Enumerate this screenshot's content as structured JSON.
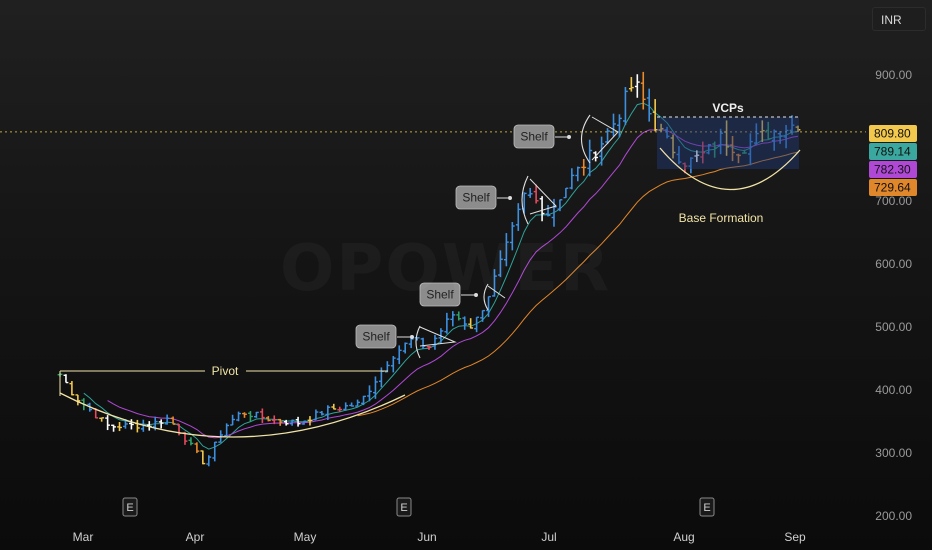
{
  "currency": "INR",
  "watermark": "OPOWER",
  "colors": {
    "bg": "#131313",
    "price_line": "#e8c94a",
    "ema_short": "#2fa39a",
    "ema_mid": "#b048d6",
    "ema_long": "#e0862b",
    "candle_colors": [
      "#3d8fe0",
      "#e64a5e",
      "#f2c94c",
      "#ffffff",
      "#2fa36b",
      "#e88a2e"
    ],
    "annotation": "#f1e3a6",
    "label_box": "#8c8c8c",
    "vcp_box": "#1f3a78"
  },
  "chart_data": {
    "type": "bar",
    "title": "",
    "x_months": [
      "Mar",
      "Apr",
      "May",
      "Jun",
      "Jul",
      "Aug",
      "Sep"
    ],
    "earnings_markers": [
      "E",
      "E",
      "E"
    ],
    "y_ticks": [
      200,
      300,
      400,
      500,
      600,
      700,
      900
    ],
    "y_tick_labels": [
      "200.00",
      "300.00",
      "400.00",
      "500.00",
      "600.00",
      "700.00",
      "900.00"
    ],
    "ylim": [
      185,
      945
    ],
    "current_price_line": 809.8,
    "price_labels": [
      {
        "value": "809.80",
        "series": "Price",
        "color": "#f2c94c"
      },
      {
        "value": "789.14",
        "series": "EMA short",
        "color": "#3aa89e"
      },
      {
        "value": "782.30",
        "series": "EMA mid",
        "color": "#b048d6"
      },
      {
        "value": "729.64",
        "series": "EMA long",
        "color": "#e0862b"
      }
    ],
    "close_anchors": [
      {
        "date": "Mar 1",
        "close": 425
      },
      {
        "date": "Mar 5",
        "close": 390
      },
      {
        "date": "Mar 14",
        "close": 342
      },
      {
        "date": "Mar 25",
        "close": 345
      },
      {
        "date": "Mar 30",
        "close": 355
      },
      {
        "date": "Apr 5",
        "close": 320
      },
      {
        "date": "Apr 10",
        "close": 282
      },
      {
        "date": "Apr 15",
        "close": 340
      },
      {
        "date": "Apr 20",
        "close": 365
      },
      {
        "date": "Apr 29",
        "close": 352
      },
      {
        "date": "May 5",
        "close": 348
      },
      {
        "date": "May 12",
        "close": 368
      },
      {
        "date": "May 20",
        "close": 378
      },
      {
        "date": "May 28",
        "close": 455
      },
      {
        "date": "Jun 3",
        "close": 480
      },
      {
        "date": "Jun 7",
        "close": 468
      },
      {
        "date": "Jun 13",
        "close": 520
      },
      {
        "date": "Jun 18",
        "close": 500
      },
      {
        "date": "Jun 22",
        "close": 555
      },
      {
        "date": "Jun 27",
        "close": 640
      },
      {
        "date": "Jul 1",
        "close": 715
      },
      {
        "date": "Jul 6",
        "close": 680
      },
      {
        "date": "Jul 11",
        "close": 735
      },
      {
        "date": "Jul 17",
        "close": 785
      },
      {
        "date": "Jul 21",
        "close": 830
      },
      {
        "date": "Jul 25",
        "close": 890
      },
      {
        "date": "Jul 29",
        "close": 830
      },
      {
        "date": "Aug 3",
        "close": 790
      },
      {
        "date": "Aug 8",
        "close": 760
      },
      {
        "date": "Aug 13",
        "close": 775
      },
      {
        "date": "Aug 17",
        "close": 800
      },
      {
        "date": "Aug 22",
        "close": 782
      },
      {
        "date": "Aug 27",
        "close": 800
      },
      {
        "date": "Sep 1",
        "close": 809.8
      }
    ]
  },
  "annotations": {
    "pivot": "Pivot",
    "shelves": [
      "Shelf",
      "Shelf",
      "Shelf",
      "Shelf"
    ],
    "vcps": "VCPs",
    "base_formation": "Base Formation"
  }
}
